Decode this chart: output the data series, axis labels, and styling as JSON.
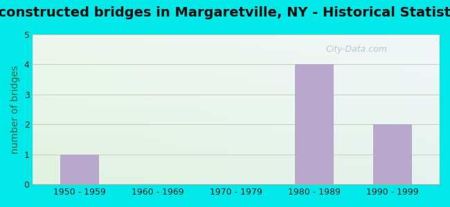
{
  "title_text": "Reconstructed bridges in Margaretville, NY - Historical Statistics",
  "categories": [
    "1950 - 1959",
    "1960 - 1969",
    "1970 - 1979",
    "1980 - 1989",
    "1990 - 1999"
  ],
  "values": [
    1,
    0,
    0,
    4,
    2
  ],
  "bar_color": "#b8a8cc",
  "ylabel": "number of bridges",
  "ylim": [
    0,
    5
  ],
  "yticks": [
    0,
    1,
    2,
    3,
    4,
    5
  ],
  "background_outer": "#00e8e8",
  "grid_color": "#c8d4c0",
  "title_fontsize": 14,
  "axis_label_fontsize": 10,
  "tick_fontsize": 9,
  "bar_width": 0.5,
  "watermark_text": "City-Data.com",
  "watermark_color": "#a8c4c4",
  "ylabel_color": "#2a6644"
}
